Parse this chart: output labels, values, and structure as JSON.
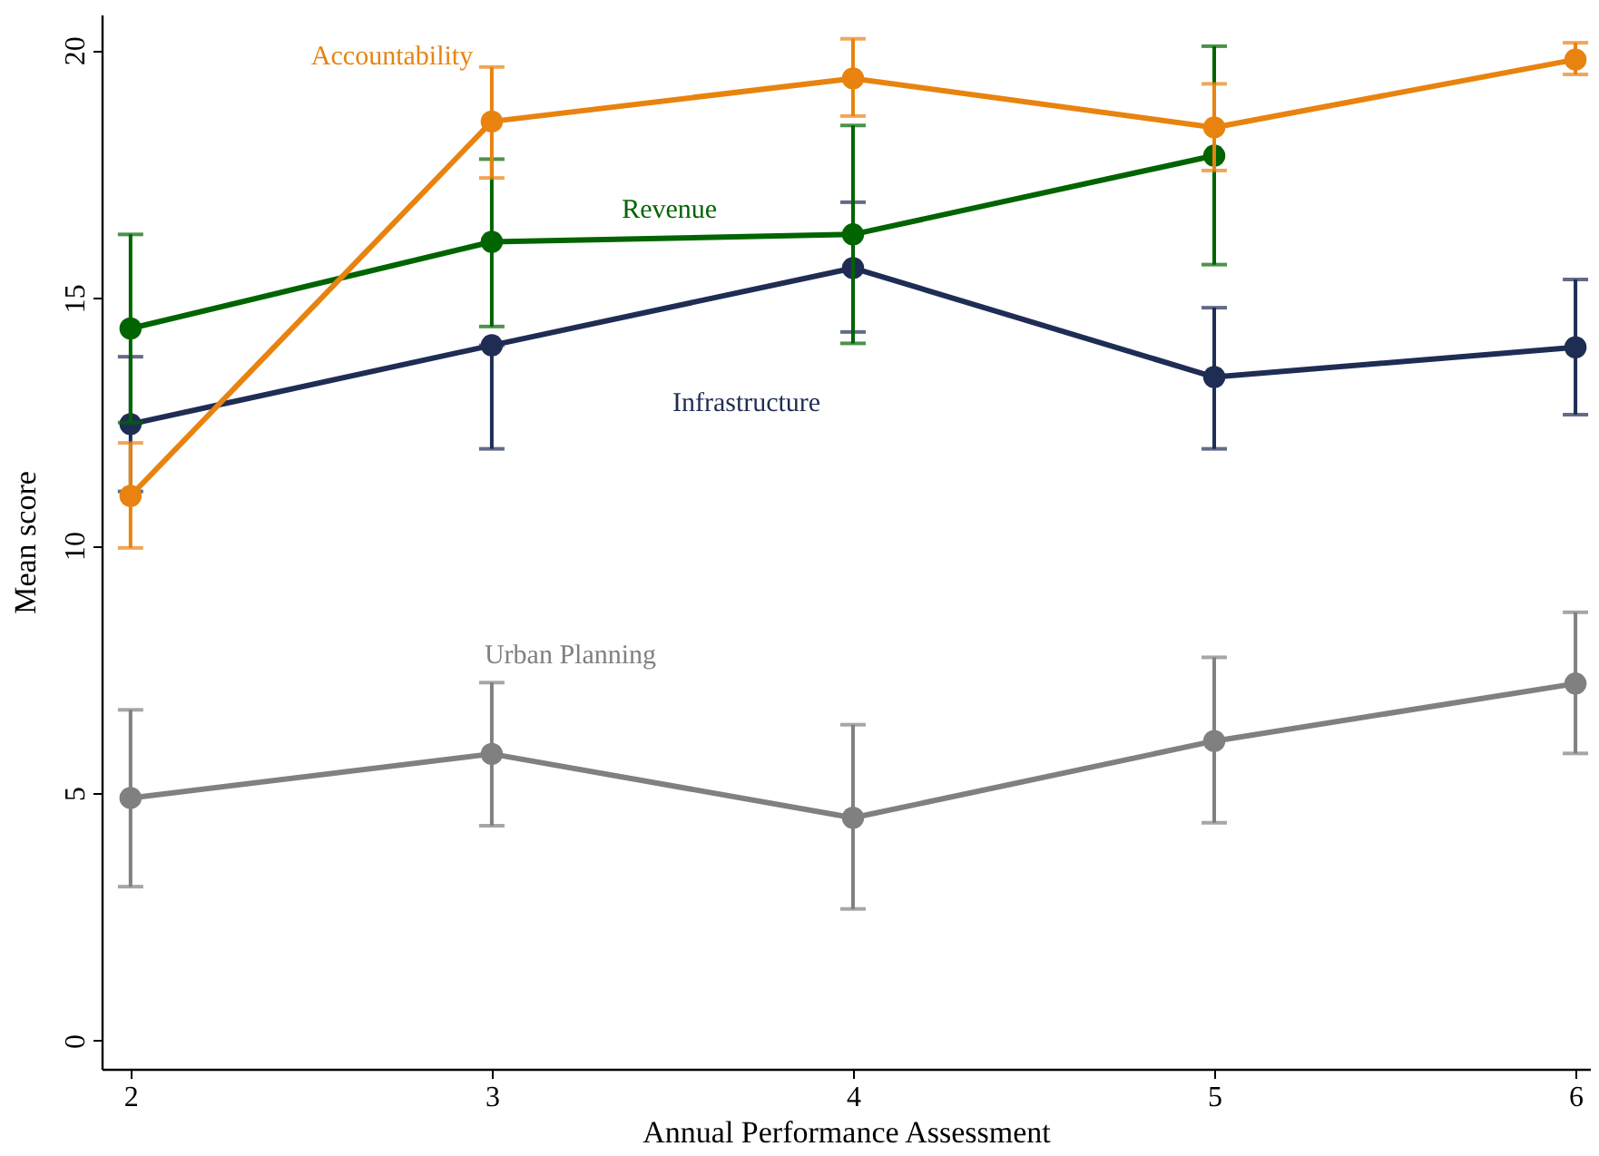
{
  "chart_data": {
    "type": "line",
    "xlabel": "Annual Performance Assessment",
    "ylabel": "Mean score",
    "x": [
      2,
      3,
      4,
      5,
      6
    ],
    "xlim": [
      1.92,
      6.04
    ],
    "xticks": [
      2,
      3,
      4,
      5,
      6
    ],
    "ylim": [
      -0.57,
      20.72
    ],
    "yticks": [
      0,
      5,
      10,
      15,
      20
    ],
    "grid": false,
    "marker": "circle",
    "line_style": "solid",
    "series": [
      {
        "name": "Urban Planning",
        "color": "#808080",
        "values": [
          4.9,
          5.79,
          4.5,
          6.05,
          7.21
        ],
        "errors": [
          [
            3.11,
            6.68
          ],
          [
            4.34,
            7.23
          ],
          [
            2.66,
            6.38
          ],
          [
            4.4,
            7.74
          ],
          [
            5.8,
            8.65
          ]
        ]
      },
      {
        "name": "Infrastructure",
        "color": "#1f2d55",
        "values": [
          12.45,
          14.04,
          15.6,
          13.4,
          14.0
        ],
        "errors": [
          [
            11.09,
            13.81
          ],
          [
            11.95,
            14.04
          ],
          [
            14.31,
            16.93
          ],
          [
            11.95,
            14.8
          ],
          [
            12.64,
            15.37
          ]
        ]
      },
      {
        "name": "Revenue",
        "color": "#006400",
        "values": [
          14.38,
          16.13,
          16.28,
          17.87,
          null
        ],
        "errors": [
          [
            12.48,
            16.28
          ],
          [
            14.42,
            17.8
          ],
          [
            14.08,
            18.48
          ],
          [
            15.67,
            20.08
          ],
          null
        ]
      },
      {
        "name": "Accountability",
        "color": "#e8830f",
        "values": [
          11.0,
          18.56,
          19.43,
          18.44,
          19.81
        ],
        "errors": [
          [
            9.95,
            12.07
          ],
          [
            17.42,
            19.66
          ],
          [
            18.67,
            20.23
          ],
          [
            17.57,
            19.32
          ],
          [
            19.51,
            20.15
          ]
        ]
      }
    ]
  }
}
